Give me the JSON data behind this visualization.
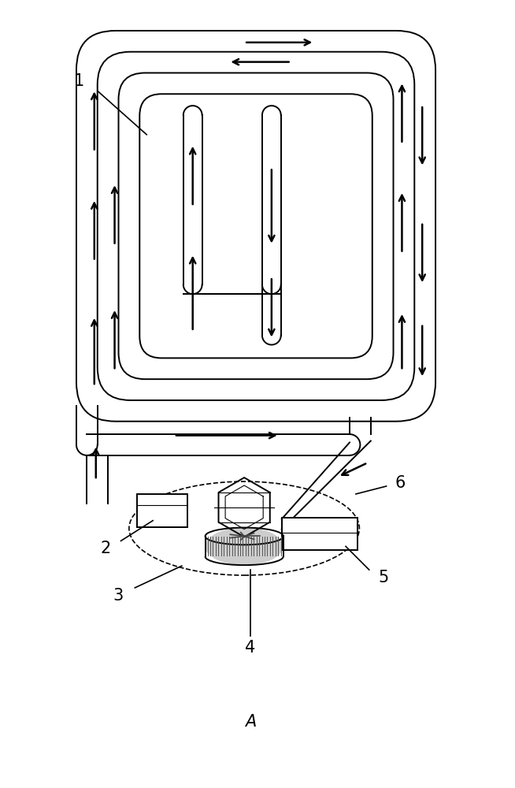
{
  "bg_color": "#ffffff",
  "line_color": "#000000",
  "lw_tube": 1.4,
  "lw_label": 1.2,
  "lw_arrow": 1.8,
  "arrow_scale": 13,
  "label_1": "1",
  "label_2": "2",
  "label_3": "3",
  "label_4": "4",
  "label_5": "5",
  "label_6": "6",
  "label_A": "A",
  "font_size": 15
}
